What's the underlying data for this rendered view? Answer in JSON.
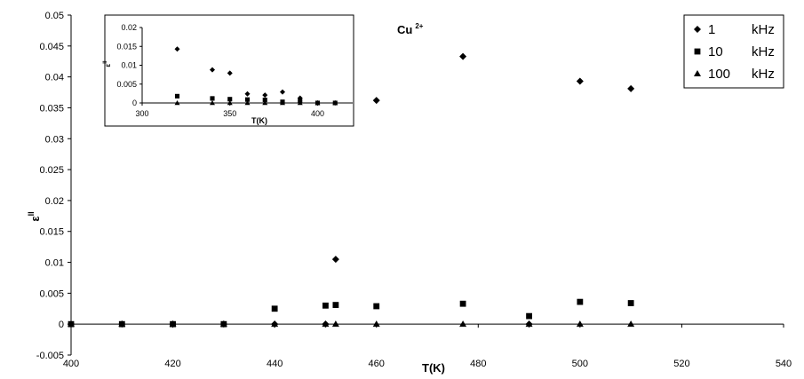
{
  "chart_data": [
    {
      "type": "scatter",
      "title": "",
      "annotation": {
        "text": "Cu",
        "superscript": "2+"
      },
      "xlabel": "T(K)",
      "ylabel": {
        "base": "ε",
        "superscript": "ll"
      },
      "xlim": [
        400,
        540
      ],
      "ylim": [
        -0.005,
        0.05
      ],
      "xticks": [
        "400",
        "420",
        "440",
        "460",
        "480",
        "500",
        "520",
        "540"
      ],
      "yticks": [
        "-0.005",
        "0",
        "0.005",
        "0.01",
        "0.015",
        "0.02",
        "0.025",
        "0.03",
        "0.035",
        "0.04",
        "0.045",
        "0.05"
      ],
      "grid": false,
      "legend": "top-right",
      "series": [
        {
          "name": "1",
          "unit": "kHz",
          "marker": "diamond",
          "x": [
            400,
            410,
            420,
            430,
            440,
            450,
            452,
            460,
            477,
            490,
            500,
            510
          ],
          "y": [
            0,
            0,
            0,
            0,
            0,
            0,
            0.0105,
            0.0362,
            0.0433,
            0,
            0.0393,
            0.0381
          ]
        },
        {
          "name": "10",
          "unit": "kHz",
          "marker": "square",
          "x": [
            400,
            410,
            420,
            430,
            440,
            450,
            452,
            460,
            477,
            490,
            500,
            510
          ],
          "y": [
            0,
            0,
            0,
            0,
            0.0025,
            0.003,
            0.0031,
            0.0029,
            0.0033,
            0.0013,
            0.0036,
            0.0034
          ]
        },
        {
          "name": "100",
          "unit": "kHz",
          "marker": "triangle",
          "x": [
            400,
            410,
            420,
            430,
            440,
            450,
            452,
            460,
            477,
            490,
            500,
            510
          ],
          "y": [
            0,
            0,
            0,
            0,
            0,
            0,
            0,
            0,
            0,
            0,
            0,
            0
          ]
        }
      ]
    },
    {
      "type": "scatter",
      "title": "",
      "xlabel": "T(K)",
      "ylabel": {
        "base": "ε",
        "superscript": "ll"
      },
      "xlim": [
        300,
        420
      ],
      "ylim": [
        0,
        0.02
      ],
      "xticks": [
        "300",
        "350",
        "400"
      ],
      "yticks": [
        "0",
        "0.005",
        "0.01",
        "0.015",
        "0.02"
      ],
      "grid": false,
      "series": [
        {
          "marker": "diamond",
          "x": [
            320,
            340,
            350,
            360,
            370,
            380,
            390,
            400,
            410
          ],
          "y": [
            0.0143,
            0.0088,
            0.0079,
            0.0024,
            0.0021,
            0.0029,
            0.0013,
            0,
            0
          ]
        },
        {
          "marker": "square",
          "x": [
            320,
            340,
            350,
            360,
            370,
            380,
            390,
            400,
            410
          ],
          "y": [
            0.0018,
            0.0012,
            0.001,
            0.0009,
            0.0008,
            0.0003,
            0.0005,
            0,
            0
          ]
        },
        {
          "marker": "triangle",
          "x": [
            320,
            340,
            350,
            360,
            370,
            380,
            390,
            400,
            410
          ],
          "y": [
            0,
            0,
            0,
            0,
            0,
            0,
            0,
            0,
            0
          ]
        }
      ]
    }
  ]
}
